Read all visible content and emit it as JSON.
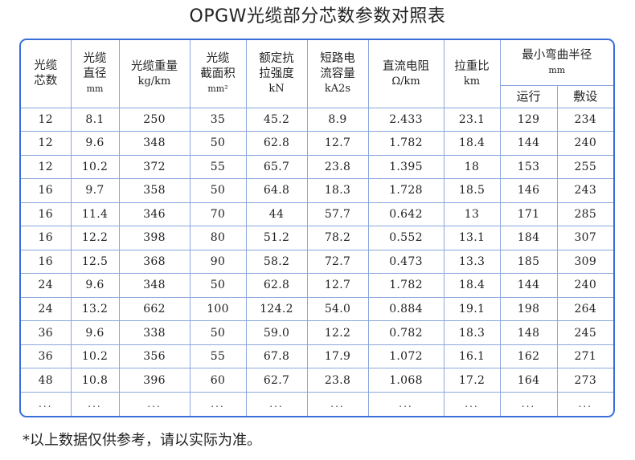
{
  "title": "OPGW光缆部分芯数参数对照表",
  "headers": {
    "cores": [
      "光缆",
      "芯数"
    ],
    "diameter": [
      "光缆",
      "直径",
      "mm"
    ],
    "weight": [
      "光缆重量",
      "kg/km"
    ],
    "area": [
      "光缆",
      "截面积",
      "mm²"
    ],
    "strength": [
      "额定抗",
      "拉强度",
      "kN"
    ],
    "short_circuit": [
      "短路电",
      "流容量",
      "kA2s"
    ],
    "resistance": [
      "直流电阻",
      "Ω/km"
    ],
    "ratio": [
      "拉重比",
      "km"
    ],
    "radius": [
      "最小弯曲半径",
      "mm"
    ],
    "radius_run": "运行",
    "radius_lay": "敷设"
  },
  "rows": [
    [
      "12",
      "8.1",
      "250",
      "35",
      "45.2",
      "8.9",
      "2.433",
      "23.1",
      "129",
      "234"
    ],
    [
      "12",
      "9.6",
      "348",
      "50",
      "62.8",
      "12.7",
      "1.782",
      "18.4",
      "144",
      "240"
    ],
    [
      "12",
      "10.2",
      "372",
      "55",
      "65.7",
      "23.8",
      "1.395",
      "18",
      "153",
      "255"
    ],
    [
      "16",
      "9.7",
      "358",
      "50",
      "64.8",
      "18.3",
      "1.728",
      "18.5",
      "146",
      "243"
    ],
    [
      "16",
      "11.4",
      "346",
      "70",
      "44",
      "57.7",
      "0.642",
      "13",
      "171",
      "285"
    ],
    [
      "16",
      "12.2",
      "398",
      "80",
      "51.2",
      "78.2",
      "0.552",
      "13.1",
      "184",
      "307"
    ],
    [
      "16",
      "12.5",
      "368",
      "90",
      "58.2",
      "72.7",
      "0.473",
      "13.3",
      "185",
      "309"
    ],
    [
      "24",
      "9.6",
      "348",
      "50",
      "62.8",
      "12.7",
      "1.782",
      "18.4",
      "144",
      "240"
    ],
    [
      "24",
      "13.2",
      "662",
      "100",
      "124.2",
      "54.0",
      "0.884",
      "19.1",
      "198",
      "264"
    ],
    [
      "36",
      "9.6",
      "338",
      "50",
      "59.0",
      "12.2",
      "0.782",
      "18.3",
      "148",
      "245"
    ],
    [
      "36",
      "10.2",
      "356",
      "55",
      "67.8",
      "17.9",
      "1.072",
      "16.1",
      "162",
      "271"
    ],
    [
      "48",
      "10.8",
      "396",
      "60",
      "62.7",
      "23.8",
      "1.068",
      "17.2",
      "164",
      "273"
    ],
    [
      "...",
      "...",
      "...",
      "...",
      "...",
      "...",
      "...",
      "...",
      "...",
      "..."
    ]
  ],
  "footnote": "*以上数据仅供参考，请以实际为准。",
  "colors": {
    "frame_border": "#3a6fd8",
    "grid_line": "#8aa6dc",
    "text": "#222222"
  }
}
